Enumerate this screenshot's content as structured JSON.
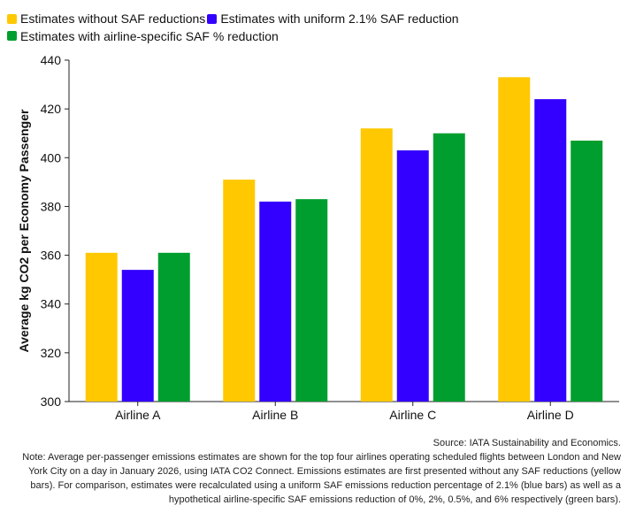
{
  "chart_data": {
    "type": "bar",
    "categories": [
      "Airline A",
      "Airline B",
      "Airline C",
      "Airline D"
    ],
    "series": [
      {
        "name": "Estimates without SAF reductions",
        "color": "#FFC800",
        "values": [
          361,
          391,
          412,
          433
        ]
      },
      {
        "name": "Estimates with uniform 2.1% SAF reduction",
        "color": "#3300FF",
        "values": [
          354,
          382,
          403,
          424
        ]
      },
      {
        "name": "Estimates with airline-specific SAF % reduction",
        "color": "#009E2E",
        "values": [
          361,
          383,
          410,
          407
        ]
      }
    ],
    "ylabel": "Average kg CO2 per Economy Passenger",
    "xlabel": "",
    "ylim": [
      300,
      440
    ],
    "yticks": [
      300,
      320,
      340,
      360,
      380,
      400,
      420,
      440
    ],
    "grid": false,
    "legend_position": "top-left"
  },
  "footnote": {
    "source": "Source: IATA Sustainability and Economics.",
    "note": "Note: Average per-passenger emissions estimates are shown for the top four airlines operating scheduled flights between London and New York City on a day in January 2026, using IATA CO2 Connect. Emissions estimates are first presented without any SAF reductions (yellow bars). For comparison, estimates were recalculated using a uniform SAF emissions reduction percentage of 2.1% (blue bars) as well as a hypothetical airline-specific SAF emissions reduction of 0%, 2%, 0.5%, and 6% respectively (green bars)."
  }
}
